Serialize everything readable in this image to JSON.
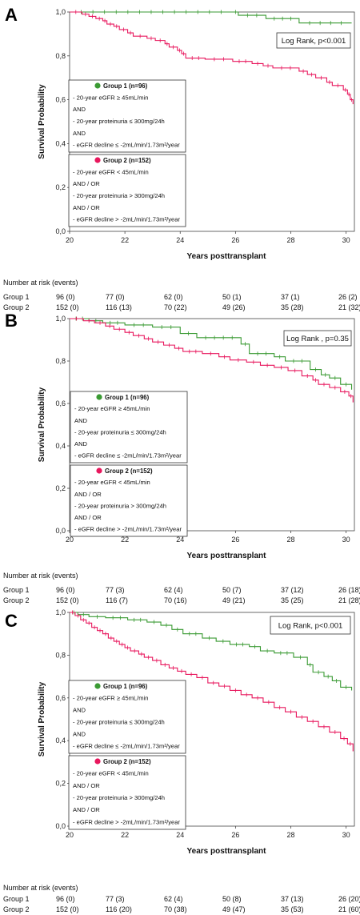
{
  "colors": {
    "group1": "#3a9a33",
    "group2": "#e8175d"
  },
  "chart_data": [
    {
      "panel": "A",
      "type": "line",
      "xlabel": "Years posttransplant",
      "ylabel": "Survival Probability",
      "xlim": [
        20,
        30.3
      ],
      "ylim": [
        0,
        1.0
      ],
      "x_ticks": [
        "20",
        "22",
        "24",
        "26",
        "28",
        "30"
      ],
      "y_ticks": [
        "0,0",
        "0,2",
        "0,4",
        "0,6",
        "0,8",
        "1,0"
      ],
      "log_rank": "Log Rank, p<0.001",
      "legend": {
        "group1": {
          "title": "Group 1 (n=96)",
          "lines": [
            "- 20-year eGFR ≥ 45mL/min",
            "AND",
            "- 20-year proteinuria ≤ 300mg/24h",
            "AND",
            "- eGFR decline ≤ -2mL/min/1.73m²/year"
          ]
        },
        "group2": {
          "title": "Group 2 (n=152)",
          "lines": [
            "- 20-year eGFR < 45mL/min",
            "AND / OR",
            "- 20-year proteinuria > 300mg/24h",
            "AND / OR",
            "- eGFR decline > -2mL/min/1.73m²/year"
          ]
        }
      },
      "series": [
        {
          "name": "Group 1",
          "step": [
            [
              20,
              1.0
            ],
            [
              25.9,
              1.0
            ],
            [
              26.1,
              0.985
            ],
            [
              27.1,
              0.97
            ],
            [
              28.3,
              0.95
            ],
            [
              30.2,
              0.95
            ]
          ]
        },
        {
          "name": "Group 2",
          "step": [
            [
              20,
              1.0
            ],
            [
              20.45,
              0.99
            ],
            [
              20.7,
              0.98
            ],
            [
              20.95,
              0.97
            ],
            [
              21.2,
              0.96
            ],
            [
              21.35,
              0.945
            ],
            [
              21.6,
              0.935
            ],
            [
              21.8,
              0.92
            ],
            [
              22.1,
              0.905
            ],
            [
              22.3,
              0.89
            ],
            [
              22.8,
              0.88
            ],
            [
              23.1,
              0.87
            ],
            [
              23.45,
              0.855
            ],
            [
              23.6,
              0.84
            ],
            [
              23.9,
              0.825
            ],
            [
              24.05,
              0.81
            ],
            [
              24.2,
              0.79
            ],
            [
              24.9,
              0.785
            ],
            [
              25.9,
              0.775
            ],
            [
              26.6,
              0.765
            ],
            [
              27.0,
              0.755
            ],
            [
              27.35,
              0.745
            ],
            [
              28.3,
              0.73
            ],
            [
              28.6,
              0.715
            ],
            [
              28.9,
              0.7
            ],
            [
              29.3,
              0.68
            ],
            [
              29.5,
              0.665
            ],
            [
              29.9,
              0.645
            ],
            [
              30.05,
              0.625
            ],
            [
              30.15,
              0.6
            ],
            [
              30.25,
              0.58
            ]
          ]
        }
      ],
      "risk_table": {
        "title": "Number at risk (events)",
        "rows": [
          {
            "label": "Group 1",
            "values": [
              "96 (0)",
              "77 (0)",
              "62 (0)",
              "50 (1)",
              "37 (1)",
              "26 (2)"
            ]
          },
          {
            "label": "Group 2",
            "values": [
              "152 (0)",
              "116 (13)",
              "70 (22)",
              "49 (26)",
              "35 (28)",
              "21 (32)"
            ]
          }
        ]
      }
    },
    {
      "panel": "B",
      "type": "line",
      "xlabel": "Years posttransplant",
      "ylabel": "Survival Probability",
      "xlim": [
        20,
        30.3
      ],
      "ylim": [
        0,
        1.0
      ],
      "x_ticks": [
        "20",
        "22",
        "24",
        "26",
        "28",
        "30"
      ],
      "y_ticks": [
        "0,0",
        "0,2",
        "0,4",
        "0,6",
        "0,8",
        "1,0"
      ],
      "log_rank": "Log Rank , p=0.35",
      "legend": {
        "group1": {
          "title": "Group 1 (n=96)",
          "lines": [
            "- 20-year eGFR ≥ 45mL/min",
            "AND",
            "- 20-year proteinuria ≤ 300mg/24h",
            "AND",
            "- eGFR decline ≤ -2mL/min/1.73m²/year"
          ]
        },
        "group2": {
          "title": "Group 2 (n=152)",
          "lines": [
            "- 20-year eGFR < 45mL/min",
            "AND / OR",
            "- 20-year proteinuria > 300mg/24h",
            "AND / OR",
            "- eGFR decline > -2mL/min/1.73m²/year"
          ]
        }
      },
      "series": [
        {
          "name": "Group 1",
          "step": [
            [
              20,
              1.0
            ],
            [
              20.7,
              0.99
            ],
            [
              21.2,
              0.98
            ],
            [
              22.0,
              0.97
            ],
            [
              23.0,
              0.96
            ],
            [
              24.0,
              0.93
            ],
            [
              24.6,
              0.91
            ],
            [
              26.2,
              0.88
            ],
            [
              26.5,
              0.835
            ],
            [
              27.4,
              0.82
            ],
            [
              27.8,
              0.8
            ],
            [
              28.7,
              0.76
            ],
            [
              29.1,
              0.735
            ],
            [
              29.4,
              0.72
            ],
            [
              29.8,
              0.69
            ],
            [
              30.2,
              0.665
            ]
          ]
        },
        {
          "name": "Group 2",
          "step": [
            [
              20,
              1.0
            ],
            [
              20.5,
              0.99
            ],
            [
              20.9,
              0.98
            ],
            [
              21.3,
              0.965
            ],
            [
              21.6,
              0.95
            ],
            [
              22.0,
              0.935
            ],
            [
              22.3,
              0.92
            ],
            [
              22.7,
              0.905
            ],
            [
              23.0,
              0.89
            ],
            [
              23.4,
              0.875
            ],
            [
              23.8,
              0.86
            ],
            [
              24.1,
              0.845
            ],
            [
              24.8,
              0.835
            ],
            [
              25.4,
              0.82
            ],
            [
              25.8,
              0.805
            ],
            [
              26.4,
              0.795
            ],
            [
              26.9,
              0.78
            ],
            [
              27.4,
              0.77
            ],
            [
              27.9,
              0.755
            ],
            [
              28.4,
              0.73
            ],
            [
              28.8,
              0.71
            ],
            [
              29.0,
              0.69
            ],
            [
              29.4,
              0.675
            ],
            [
              29.8,
              0.655
            ],
            [
              30.1,
              0.635
            ],
            [
              30.25,
              0.605
            ]
          ]
        }
      ],
      "risk_table": {
        "title": "Number at risk (events)",
        "rows": [
          {
            "label": "Group 1",
            "values": [
              "96 (0)",
              "77 (3)",
              "62 (4)",
              "50 (7)",
              "37 (12)",
              "26 (18)"
            ]
          },
          {
            "label": "Group 2",
            "values": [
              "152 (0)",
              "116 (7)",
              "70 (16)",
              "49 (21)",
              "35 (25)",
              "21 (28)"
            ]
          }
        ]
      }
    },
    {
      "panel": "C",
      "type": "line",
      "xlabel": "Years posttransplant",
      "ylabel": "Survival Probability",
      "xlim": [
        20,
        30.3
      ],
      "ylim": [
        0,
        1.0
      ],
      "x_ticks": [
        "20",
        "22",
        "24",
        "26",
        "28",
        "30"
      ],
      "y_ticks": [
        "0,0",
        "0,2",
        "0,4",
        "0,6",
        "0,8",
        "1,0"
      ],
      "log_rank": "Log Rank, p<0.001",
      "legend": {
        "group1": {
          "title": "Group 1 (n=96)",
          "lines": [
            "- 20-year eGFR ≥ 45mL/min",
            "AND",
            "- 20-year proteinuria ≤ 300mg/24h",
            "AND",
            "- eGFR decline ≤ -2mL/min/1.73m²/year"
          ]
        },
        "group2": {
          "title": "Group 2 (n=152)",
          "lines": [
            "- 20-year eGFR < 45mL/min",
            "AND / OR",
            "- 20-year proteinuria > 300mg/24h",
            "AND / OR",
            "- eGFR decline > -2mL/min/1.73m²/year"
          ]
        }
      },
      "series": [
        {
          "name": "Group 1",
          "step": [
            [
              20,
              1.0
            ],
            [
              20.3,
              0.99
            ],
            [
              20.7,
              0.98
            ],
            [
              21.3,
              0.975
            ],
            [
              22.1,
              0.965
            ],
            [
              22.8,
              0.955
            ],
            [
              23.3,
              0.94
            ],
            [
              23.7,
              0.92
            ],
            [
              24.1,
              0.9
            ],
            [
              24.8,
              0.88
            ],
            [
              25.3,
              0.865
            ],
            [
              25.8,
              0.85
            ],
            [
              26.5,
              0.84
            ],
            [
              26.9,
              0.82
            ],
            [
              27.4,
              0.81
            ],
            [
              28.1,
              0.79
            ],
            [
              28.6,
              0.755
            ],
            [
              28.8,
              0.72
            ],
            [
              29.2,
              0.7
            ],
            [
              29.5,
              0.68
            ],
            [
              29.8,
              0.65
            ],
            [
              30.2,
              0.635
            ]
          ]
        },
        {
          "name": "Group 2",
          "step": [
            [
              20,
              1.0
            ],
            [
              20.2,
              0.985
            ],
            [
              20.4,
              0.965
            ],
            [
              20.6,
              0.95
            ],
            [
              20.8,
              0.93
            ],
            [
              21.0,
              0.915
            ],
            [
              21.2,
              0.9
            ],
            [
              21.4,
              0.88
            ],
            [
              21.6,
              0.865
            ],
            [
              21.8,
              0.85
            ],
            [
              22.0,
              0.835
            ],
            [
              22.2,
              0.82
            ],
            [
              22.5,
              0.805
            ],
            [
              22.7,
              0.79
            ],
            [
              23.0,
              0.775
            ],
            [
              23.3,
              0.755
            ],
            [
              23.6,
              0.74
            ],
            [
              23.9,
              0.725
            ],
            [
              24.2,
              0.71
            ],
            [
              24.6,
              0.695
            ],
            [
              25.0,
              0.67
            ],
            [
              25.4,
              0.655
            ],
            [
              25.8,
              0.635
            ],
            [
              26.2,
              0.615
            ],
            [
              26.6,
              0.6
            ],
            [
              27.0,
              0.58
            ],
            [
              27.4,
              0.555
            ],
            [
              27.8,
              0.535
            ],
            [
              28.2,
              0.51
            ],
            [
              28.6,
              0.49
            ],
            [
              29.0,
              0.465
            ],
            [
              29.4,
              0.44
            ],
            [
              29.8,
              0.41
            ],
            [
              30.05,
              0.385
            ],
            [
              30.25,
              0.35
            ]
          ]
        }
      ],
      "risk_table": {
        "title": "Number at risk (events)",
        "rows": [
          {
            "label": "Group 1",
            "values": [
              "96 (0)",
              "77 (3)",
              "62 (4)",
              "50 (8)",
              "37 (13)",
              "26 (20)"
            ]
          },
          {
            "label": "Group 2",
            "values": [
              "152 (0)",
              "116 (20)",
              "70 (38)",
              "49 (47)",
              "35 (53)",
              "21 (60)"
            ]
          }
        ]
      }
    }
  ]
}
